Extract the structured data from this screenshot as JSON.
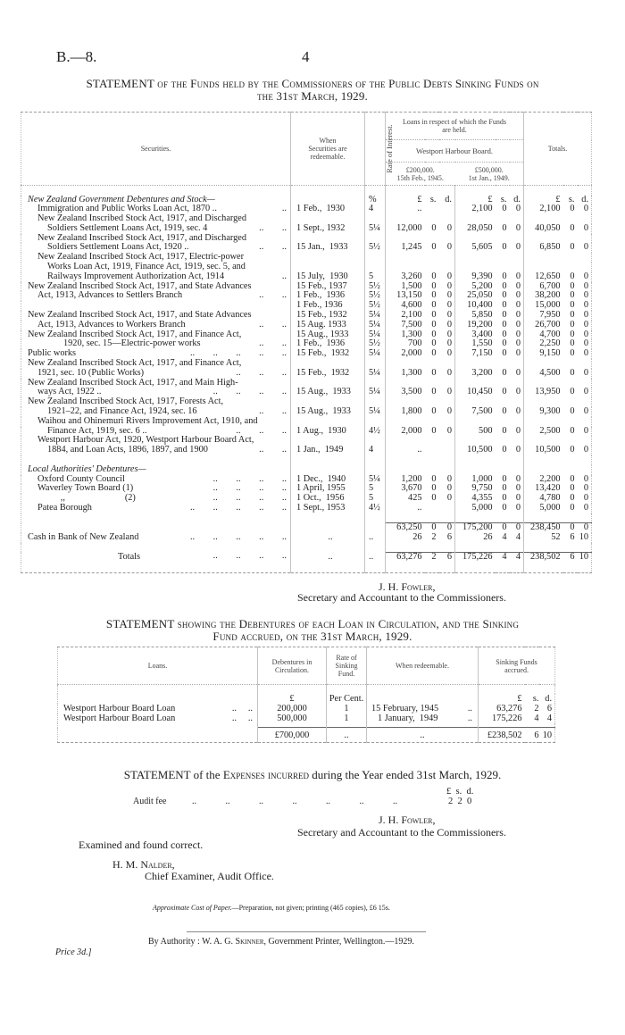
{
  "page": {
    "ref": "B.—8.",
    "number": "4"
  },
  "main": {
    "title_lead": "STATEMENT",
    "title_line1": "of the Funds held by the Commissioners of the Public Debts Sinking Funds on",
    "title_line2": "the 31st March, 1929.",
    "headers": {
      "securities": "Securities.",
      "when": "When Securities are redeemable.",
      "rate": "Rate of Interest.",
      "loans": "Loans in respect of which the Funds are held.",
      "board": "Westport Harbour Board.",
      "loan1_amount": "£200,000.",
      "loan1_date": "15th Feb., 1945.",
      "loan2_amount": "£500,000.",
      "loan2_date": "1st Jan., 1949.",
      "totals": "Totals."
    },
    "rows": [
      {
        "s": "New Zealand Government Debentures and Stock—",
        "i": 0,
        "it": true,
        "r": "%",
        "a": [
          "£",
          "s.",
          "d."
        ],
        "b": [
          "£",
          "s.",
          "d."
        ],
        "t": [
          "£",
          "s.",
          "d."
        ]
      },
      {
        "s": "Immigration and Public Works Loan Act, 1870 ..",
        "l": "..",
        "i": 1,
        "w": "1 Feb.,  1930",
        "r": "4",
        "a": [
          ".."
        ],
        "b": [
          "2,100",
          "0",
          "0"
        ],
        "t": [
          "2,100",
          "0",
          "0"
        ]
      },
      {
        "s": "New Zealand Inscribed Stock Act, 1917, and Discharged",
        "i": 1
      },
      {
        "s": "Soldiers Settlement Loans Act, 1919, sec. 4",
        "l": ".. ..",
        "i": 2,
        "w": "1 Sept., 1932",
        "r": "5¼",
        "a": [
          "12,000",
          "0",
          "0"
        ],
        "b": [
          "28,050",
          "0",
          "0"
        ],
        "t": [
          "40,050",
          "0",
          "0"
        ]
      },
      {
        "s": "New Zealand Inscribed Stock Act, 1917, and Discharged",
        "i": 1
      },
      {
        "s": "Soldiers Settlement Loans Act, 1920 ..",
        "l": ".. ..",
        "i": 2,
        "w": "15 Jan.,  1933",
        "r": "5½",
        "a": [
          "1,245",
          "0",
          "0"
        ],
        "b": [
          "5,605",
          "0",
          "0"
        ],
        "t": [
          "6,850",
          "0",
          "0"
        ]
      },
      {
        "s": "New Zealand Inscribed Stock Act, 1917, Electric-power",
        "i": 1
      },
      {
        "s": "Works Loan Act, 1919, Finance Act, 1919, sec. 5, and",
        "i": 2
      },
      {
        "s": "Railways Improvement Authorization Act, 1914",
        "l": "..",
        "i": 2,
        "w": "15 July,  1930",
        "r": "5",
        "a": [
          "3,260",
          "0",
          "0"
        ],
        "b": [
          "9,390",
          "0",
          "0"
        ],
        "t": [
          "12,650",
          "0",
          "0"
        ]
      },
      {
        "s": "New Zealand Inscribed Stock Act, 1917, and State Advances",
        "i": 0,
        "w": "15 Feb., 1937",
        "r": "5½",
        "a": [
          "1,500",
          "0",
          "0"
        ],
        "b": [
          "5,200",
          "0",
          "0"
        ],
        "t": [
          "6,700",
          "0",
          "0"
        ]
      },
      {
        "s": "Act, 1913, Advances to Settlers Branch",
        "l": ".. ..",
        "i": 1,
        "w": "1 Feb.,  1936",
        "r": "5½",
        "a": [
          "13,150",
          "0",
          "0"
        ],
        "b": [
          "25,050",
          "0",
          "0"
        ],
        "t": [
          "38,200",
          "0",
          "0"
        ]
      },
      {
        "s": "",
        "i": 0,
        "w": "1 Feb., 1936",
        "r": "5½",
        "a": [
          "4,600",
          "0",
          "0"
        ],
        "b": [
          "10,400",
          "0",
          "0"
        ],
        "t": [
          "15,000",
          "0",
          "0"
        ]
      },
      {
        "s": "New Zealand Inscribed Stock Act, 1917, and State Advances",
        "i": 0,
        "w": "15 Feb., 1932",
        "r": "5¼",
        "a": [
          "2,100",
          "0",
          "0"
        ],
        "b": [
          "5,850",
          "0",
          "0"
        ],
        "t": [
          "7,950",
          "0",
          "0"
        ]
      },
      {
        "s": "Act, 1913, Advances to Workers Branch",
        "l": ".. ..",
        "i": 1,
        "w": "15 Aug. 1933",
        "r": "5¼",
        "a": [
          "7,500",
          "0",
          "0"
        ],
        "b": [
          "19,200",
          "0",
          "0"
        ],
        "t": [
          "26,700",
          "0",
          "0"
        ]
      },
      {
        "s": "New Zealand Inscribed Stock Act, 1917, and Finance Act,",
        "i": 0,
        "w": "15 Aug., 1933",
        "r": "5¼",
        "a": [
          "1,300",
          "0",
          "0"
        ],
        "b": [
          "3,400",
          "0",
          "0"
        ],
        "t": [
          "4,700",
          "0",
          "0"
        ]
      },
      {
        "s": "1920, sec. 15—Electric-power works",
        "l": ".. ..",
        "i": 3,
        "w": "1 Feb.,  1936",
        "r": "5½",
        "a": [
          "700",
          "0",
          "0"
        ],
        "b": [
          "1,550",
          "0",
          "0"
        ],
        "t": [
          "2,250",
          "0",
          "0"
        ]
      },
      {
        "s": "Public works",
        "l": ".. .. .. .. ..",
        "i": 0,
        "w": "15 Feb.,  1932",
        "r": "5¼",
        "a": [
          "2,000",
          "0",
          "0"
        ],
        "b": [
          "7,150",
          "0",
          "0"
        ],
        "t": [
          "9,150",
          "0",
          "0"
        ]
      },
      {
        "s": "New Zealand Inscribed Stock Act, 1917, and Finance Act,",
        "i": 0
      },
      {
        "s": "1921, sec. 10 (Public Works)",
        "l": ".. .. ..",
        "i": 1,
        "w": "15 Feb.,  1932",
        "r": "5¼",
        "a": [
          "1,300",
          "0",
          "0"
        ],
        "b": [
          "3,200",
          "0",
          "0"
        ],
        "t": [
          "4,500",
          "0",
          "0"
        ]
      },
      {
        "s": "New Zealand Inscribed Stock Act, 1917, and Main High-",
        "i": 0
      },
      {
        "s": "ways Act, 1922 ..",
        "l": ".. .. .. ..",
        "i": 1,
        "w": "15 Aug.,  1933",
        "r": "5¼",
        "a": [
          "3,500",
          "0",
          "0"
        ],
        "b": [
          "10,450",
          "0",
          "0"
        ],
        "t": [
          "13,950",
          "0",
          "0"
        ]
      },
      {
        "s": "New Zealand Inscribed Stock Act, 1917, Forests Act,",
        "i": 0
      },
      {
        "s": "1921–22, and Finance Act, 1924, sec. 16",
        "l": ".. ..",
        "i": 2,
        "w": "15 Aug.,  1933",
        "r": "5¼",
        "a": [
          "1,800",
          "0",
          "0"
        ],
        "b": [
          "7,500",
          "0",
          "0"
        ],
        "t": [
          "9,300",
          "0",
          "0"
        ]
      },
      {
        "s": "Waihou and Ohinemuri Rivers Improvement Act, 1910, and",
        "i": 1
      },
      {
        "s": "Finance Act, 1919, sec. 6 ..",
        "l": ".. .. ..",
        "i": 2,
        "w": "1 Aug.,  1930",
        "r": "4½",
        "a": [
          "2,000",
          "0",
          "0"
        ],
        "b": [
          "500",
          "0",
          "0"
        ],
        "t": [
          "2,500",
          "0",
          "0"
        ]
      },
      {
        "s": "Westport Harbour Act, 1920, Westport Harbour Board Act,",
        "i": 1
      },
      {
        "s": "1884, and Loan Acts, 1896, 1897, and 1900",
        "l": ".. ..",
        "i": 2,
        "w": "1 Jan.,  1949",
        "r": "4",
        "a": [
          ".."
        ],
        "b": [
          "10,500",
          "0",
          "0"
        ],
        "t": [
          "10,500",
          "0",
          "0"
        ]
      },
      {
        "s": "",
        "i": 0
      },
      {
        "s": "Local Authorities' Debentures—",
        "i": 0,
        "it": true
      },
      {
        "s": "Oxford County Council",
        "l": ".. .. .. ..",
        "i": 1,
        "w": "1 Dec.,  1940",
        "r": "5¼",
        "a": [
          "1,200",
          "0",
          "0"
        ],
        "b": [
          "1,000",
          "0",
          "0"
        ],
        "t": [
          "2,200",
          "0",
          "0"
        ]
      },
      {
        "s": "Waverley Town Board (1)",
        "l": ".. .. .. ..",
        "i": 1,
        "w": "1 April, 1955",
        "r": "5",
        "a": [
          "3,670",
          "0",
          "0"
        ],
        "b": [
          "9,750",
          "0",
          "0"
        ],
        "t": [
          "13,420",
          "0",
          "0"
        ]
      },
      {
        "s": "          ,,                          (2)",
        "l": ".. .. .. ..",
        "i": 1,
        "w": "1 Oct.,  1956",
        "r": "5",
        "a": [
          "425",
          "0",
          "0"
        ],
        "b": [
          "4,355",
          "0",
          "0"
        ],
        "t": [
          "4,780",
          "0",
          "0"
        ]
      },
      {
        "s": "Patea Borough",
        "l": ".. .. .. .. ..",
        "i": 1,
        "w": "1 Sept., 1953",
        "r": "4½",
        "a": [
          ".."
        ],
        "b": [
          "5,000",
          "0",
          "0"
        ],
        "t": [
          "5,000",
          "0",
          "0"
        ]
      },
      {
        "s": "",
        "i": 0
      },
      {
        "s": "",
        "i": 0,
        "a": [
          "63,250",
          "0",
          "0"
        ],
        "b": [
          "175,200",
          "0",
          "0"
        ],
        "t": [
          "238,450",
          "0",
          "0"
        ]
      },
      {
        "s": "Cash in Bank of New Zealand",
        "l": ".. .. .. .. ..",
        "i": 0,
        "w": "..",
        "r": "..",
        "a": [
          "26",
          "2",
          "6"
        ],
        "b": [
          "26",
          "4",
          "4"
        ],
        "t": [
          "52",
          "6",
          "10"
        ]
      },
      {
        "s": "",
        "i": 0
      },
      {
        "s": "Totals",
        "l": ".. .. .. ..",
        "i": 9,
        "w": "..",
        "r": "..",
        "a": [
          "63,276",
          "2",
          "6"
        ],
        "b": [
          "175,226",
          "4",
          "4"
        ],
        "t": [
          "238,502",
          "6",
          "10"
        ]
      }
    ]
  },
  "signature1": {
    "name": "J. H. Fowler,",
    "title": "Secretary and Accountant to the Commissioners."
  },
  "loans": {
    "title_lead": "STATEMENT",
    "title_line1": "showing the Debentures of each Loan in Circulation, and the Sinking",
    "title_line2": "Fund accrued, on the 31st March, 1929.",
    "headers": {
      "loans": "Loans.",
      "debentures": "Debentures in Circulation.",
      "rate": "Rate of Sinking Fund.",
      "when": "When redeemable.",
      "sinking": "Sinking Funds accrued."
    },
    "units": {
      "deb": "£",
      "rate": "Per Cent.",
      "sf": [
        "£",
        "s.",
        "d."
      ]
    },
    "rows": [
      {
        "loan": "Westport Harbour Board Loan",
        "lead": "..     ..",
        "deb": "200,000",
        "rate": "1",
        "when": "15 February, 1945",
        "when_lead": "..",
        "sf": [
          "63,276",
          "2",
          "6"
        ]
      },
      {
        "loan": "Westport Harbour Board Loan",
        "lead": "..     ..",
        "deb": "500,000",
        "rate": "1",
        "when": "1 January,  1949",
        "when_lead": "..",
        "sf": [
          "175,226",
          "4",
          "4"
        ]
      }
    ],
    "total": {
      "deb": "£700,000",
      "rate": "..",
      "when": "..",
      "sf": [
        "£238,502",
        "6",
        "10"
      ]
    }
  },
  "expenses": {
    "title_a": "STATEMENT of the",
    "title_b": "Expenses incurred",
    "title_c": "during the Year ended 31st March, 1929.",
    "units": "£  s.  d.",
    "item": "Audit fee",
    "leader": ".. .. .. .. .. .. ..",
    "amount": "2  2  0"
  },
  "signature2": {
    "name": "J. H. Fowler,",
    "title": "Secretary and Accountant to the Commissioners."
  },
  "audit": {
    "note": "Examined and found correct.",
    "name": "H. M. Nalder,",
    "title": "Chief Examiner, Audit Office."
  },
  "cost": {
    "label": "Approximate Cost of Paper.",
    "text": "—Preparation, not given;  printing (465 copies), £6 15s."
  },
  "imprint": {
    "prefix": "By Authority :  W. A. G.",
    "printer": "Skinner,",
    "suffix": "Government Printer, Wellington.—1929."
  },
  "price": "Price 3d.]"
}
